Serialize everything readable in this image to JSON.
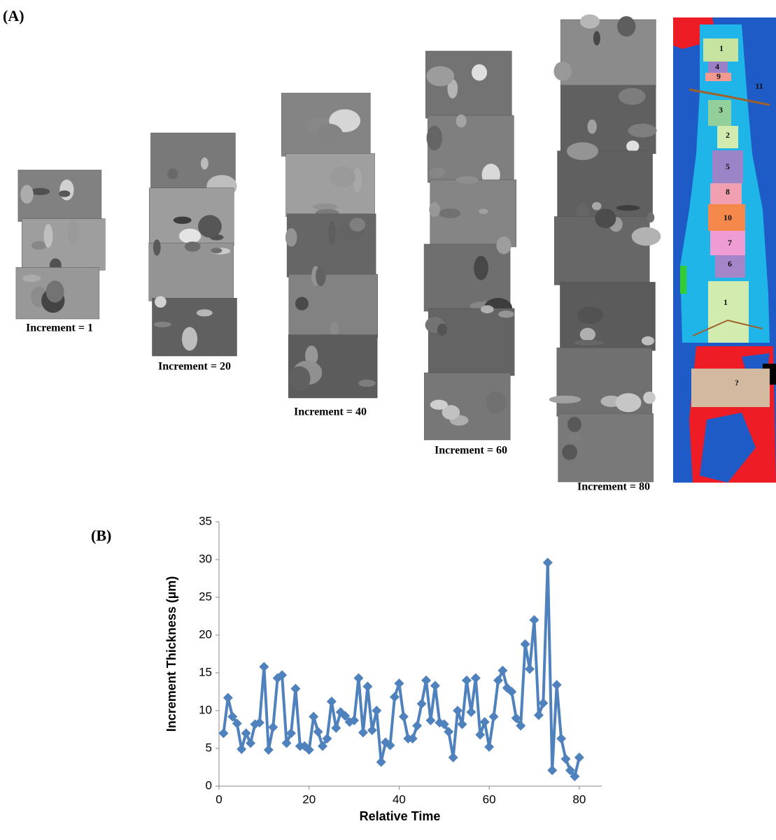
{
  "panel_a": {
    "label": "(A)",
    "increments": [
      "Increment = 1",
      "Increment = 20",
      "Increment = 40",
      "Increment = 60",
      "Increment = 80"
    ],
    "map_labels": [
      "1",
      "4",
      "9",
      "11",
      "3",
      "2",
      "5",
      "8",
      "10",
      "7",
      "6",
      "1",
      "?"
    ]
  },
  "panel_b": {
    "label": "(B)"
  },
  "chart_data": {
    "type": "line",
    "y_label": "Increment Thickness (µm)",
    "x_label": "Relative Time",
    "color": "#4f81bd",
    "marker": "diamond",
    "grid": false,
    "x": [
      1,
      2,
      3,
      4,
      5,
      6,
      7,
      8,
      9,
      10,
      11,
      12,
      13,
      14,
      15,
      16,
      17,
      18,
      19,
      20,
      21,
      22,
      23,
      24,
      25,
      26,
      27,
      28,
      29,
      30,
      31,
      32,
      33,
      34,
      35,
      36,
      37,
      38,
      39,
      40,
      41,
      42,
      43,
      44,
      45,
      46,
      47,
      48,
      49,
      50,
      51,
      52,
      53,
      54,
      55,
      56,
      57,
      58,
      59,
      60,
      61,
      62,
      63,
      64,
      65,
      66,
      67,
      68,
      69,
      70,
      71,
      72,
      73,
      74,
      75,
      76,
      77,
      78,
      79,
      80
    ],
    "values": [
      7,
      11.7,
      9.2,
      8.3,
      4.9,
      7,
      5.7,
      8.2,
      8.4,
      15.8,
      4.8,
      7.8,
      14.3,
      14.7,
      5.7,
      7,
      12.9,
      5.3,
      5.3,
      4.8,
      9.2,
      7.2,
      5.3,
      6.3,
      11.2,
      7.7,
      9.8,
      9.3,
      8.5,
      8.7,
      14.3,
      7.1,
      13.2,
      7.4,
      10,
      3.2,
      5.8,
      5.4,
      11.8,
      13.6,
      9.2,
      6.3,
      6.3,
      8,
      10.9,
      14,
      8.7,
      13.3,
      8.4,
      8.2,
      7.2,
      3.8,
      10,
      8.2,
      14,
      9.8,
      14.3,
      6.8,
      8.5,
      5.2,
      9.2,
      14,
      15.3,
      13,
      12.5,
      9,
      8,
      18.8,
      15.5,
      22,
      9.4,
      11,
      29.6,
      2.1,
      13.4,
      6.3,
      3.6,
      2.1,
      1.3,
      3.8
    ],
    "xlim": [
      0,
      85
    ],
    "xticks": [
      0,
      20,
      40,
      60,
      80
    ],
    "ylim": [
      0,
      35
    ],
    "yticks": [
      0,
      5,
      10,
      15,
      20,
      25,
      30,
      35
    ]
  }
}
